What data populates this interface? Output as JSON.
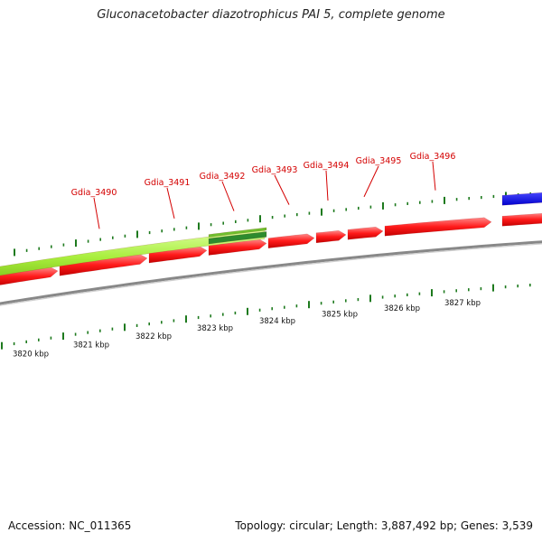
{
  "title": "Gluconacetobacter diazotrophicus PAI 5, complete genome",
  "footer": {
    "accession_label": "Accession:",
    "accession": "NC_011365",
    "topology_label": "Topology:",
    "topology": "circular",
    "length_label": "Length:",
    "length": "3,887,492 bp",
    "genes_label": "Genes:",
    "genes": "3,539"
  },
  "colors": {
    "cds": "#ff0000",
    "gene_feature": "#b7f34a",
    "gene_feature_dark": "#2e8b2e",
    "other_feature": "#0000ff",
    "backbone": "#888888",
    "tick": "#1e7a1e",
    "label": "#d40000"
  },
  "scale_labels": [
    "3820 kbp",
    "3821 kbp",
    "3822 kbp",
    "3823 kbp",
    "3824 kbp",
    "3825 kbp",
    "3826 kbp",
    "3827 kbp"
  ],
  "gene_labels": [
    "Gdia_3490",
    "Gdia_3491",
    "Gdia_3492",
    "Gdia_3493",
    "Gdia_3494",
    "Gdia_3495",
    "Gdia_3496"
  ]
}
